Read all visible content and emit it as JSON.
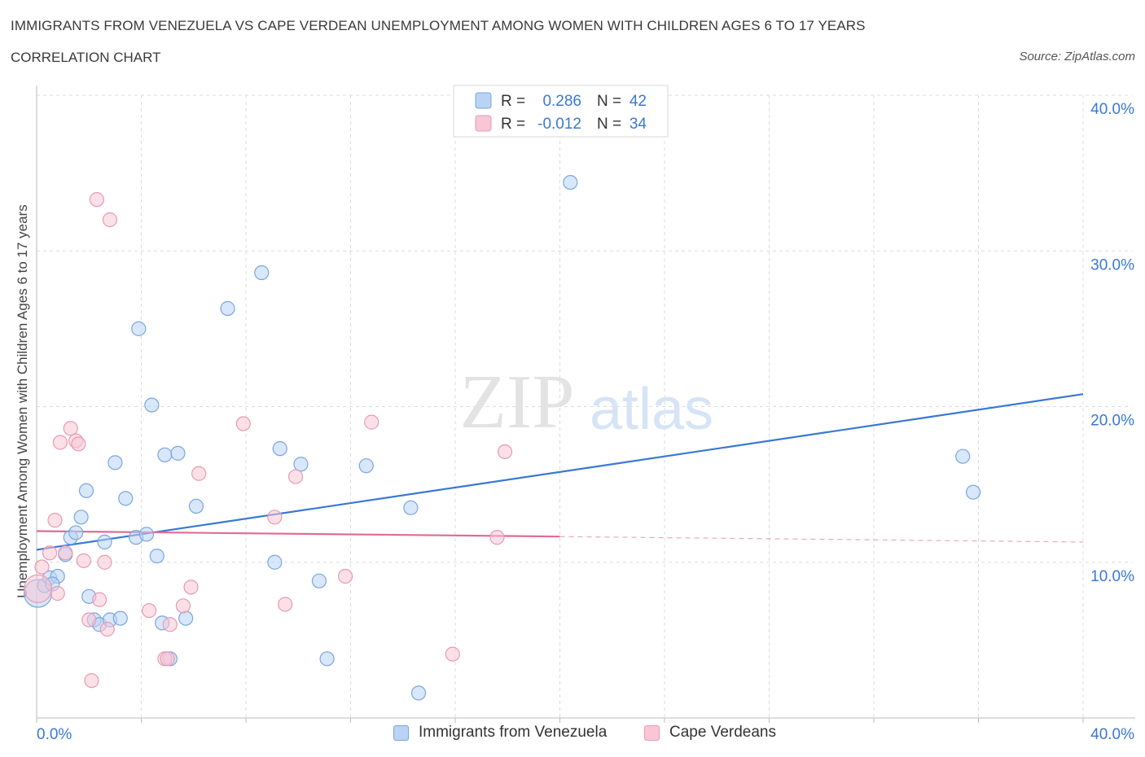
{
  "header": {
    "title": "IMMIGRANTS FROM VENEZUELA VS CAPE VERDEAN UNEMPLOYMENT AMONG WOMEN WITH CHILDREN AGES 6 TO 17 YEARS",
    "subtitle": "CORRELATION CHART",
    "source": "Source: ZipAtlas.com"
  },
  "watermark": {
    "zip": "ZIP",
    "atlas": "atlas"
  },
  "colors": {
    "blue_fill": "#b8d3f5",
    "blue_stroke": "#7aa6df",
    "blue_line": "#3a78d4",
    "pink_fill": "#f8c6d5",
    "pink_stroke": "#e99ab3",
    "pink_line": "#e06c96",
    "value_text": "#3a78d4",
    "grid": "#dcdcdc"
  },
  "legend_top": {
    "rows": [
      {
        "r_label": "R =",
        "r_value": "0.286",
        "n_label": "N =",
        "n_value": "42"
      },
      {
        "r_label": "R =",
        "r_value": "-0.012",
        "n_label": "N =",
        "n_value": "34"
      }
    ]
  },
  "legend_bottom": {
    "items": [
      {
        "label": "Immigrants from Venezuela"
      },
      {
        "label": "Cape Verdeans"
      }
    ]
  },
  "chart_data": {
    "type": "scatter",
    "ylabel": "Unemployment Among Women with Children Ages 6 to 17 years",
    "xlabel": "",
    "xlim": [
      0,
      40
    ],
    "ylim": [
      0,
      40
    ],
    "x_tick_labels": [
      "0.0%",
      "40.0%"
    ],
    "y_ticks": [
      10,
      20,
      30,
      40
    ],
    "y_tick_labels": [
      "10.0%",
      "20.0%",
      "30.0%",
      "40.0%"
    ],
    "grid": true,
    "legend": "top-center",
    "series": [
      {
        "name": "Immigrants from Venezuela",
        "color": "blue",
        "trend": {
          "x": [
            0,
            40
          ],
          "y": [
            10.8,
            20.8
          ],
          "dashed_from": null
        },
        "points": [
          {
            "x": 0.05,
            "y": 8.0,
            "big": true
          },
          {
            "x": 0.3,
            "y": 8.5
          },
          {
            "x": 0.5,
            "y": 9.0
          },
          {
            "x": 0.8,
            "y": 9.1
          },
          {
            "x": 1.1,
            "y": 10.5
          },
          {
            "x": 1.3,
            "y": 11.6
          },
          {
            "x": 1.5,
            "y": 11.9
          },
          {
            "x": 1.7,
            "y": 12.9
          },
          {
            "x": 1.9,
            "y": 14.6
          },
          {
            "x": 2.0,
            "y": 7.8
          },
          {
            "x": 2.2,
            "y": 6.3
          },
          {
            "x": 2.4,
            "y": 6.0
          },
          {
            "x": 2.6,
            "y": 11.3
          },
          {
            "x": 2.8,
            "y": 6.3
          },
          {
            "x": 3.0,
            "y": 16.4
          },
          {
            "x": 3.2,
            "y": 6.4
          },
          {
            "x": 3.4,
            "y": 14.1
          },
          {
            "x": 3.8,
            "y": 11.6
          },
          {
            "x": 3.9,
            "y": 25.0
          },
          {
            "x": 4.2,
            "y": 11.8
          },
          {
            "x": 4.4,
            "y": 20.1
          },
          {
            "x": 4.6,
            "y": 10.4
          },
          {
            "x": 4.8,
            "y": 6.1
          },
          {
            "x": 4.9,
            "y": 16.9
          },
          {
            "x": 5.1,
            "y": 3.8
          },
          {
            "x": 5.4,
            "y": 17.0
          },
          {
            "x": 5.7,
            "y": 6.4
          },
          {
            "x": 6.1,
            "y": 13.6
          },
          {
            "x": 7.3,
            "y": 26.3
          },
          {
            "x": 8.6,
            "y": 28.6
          },
          {
            "x": 9.1,
            "y": 10.0
          },
          {
            "x": 9.3,
            "y": 17.3
          },
          {
            "x": 10.1,
            "y": 16.3
          },
          {
            "x": 10.8,
            "y": 8.8
          },
          {
            "x": 11.1,
            "y": 3.8
          },
          {
            "x": 12.6,
            "y": 16.2
          },
          {
            "x": 14.3,
            "y": 13.5
          },
          {
            "x": 14.6,
            "y": 1.6
          },
          {
            "x": 20.4,
            "y": 34.4
          },
          {
            "x": 35.4,
            "y": 16.8
          },
          {
            "x": 35.8,
            "y": 14.5
          },
          {
            "x": 0.6,
            "y": 8.6
          }
        ]
      },
      {
        "name": "Cape Verdeans",
        "color": "pink",
        "trend": {
          "x": [
            0,
            40
          ],
          "y": [
            12.0,
            11.3
          ],
          "dashed_from": 20.0
        },
        "points": [
          {
            "x": 0.05,
            "y": 8.3,
            "big": true
          },
          {
            "x": 0.2,
            "y": 9.7
          },
          {
            "x": 0.5,
            "y": 10.6
          },
          {
            "x": 0.7,
            "y": 12.7
          },
          {
            "x": 0.8,
            "y": 8.0
          },
          {
            "x": 0.9,
            "y": 17.7
          },
          {
            "x": 1.1,
            "y": 10.6
          },
          {
            "x": 1.3,
            "y": 18.6
          },
          {
            "x": 1.5,
            "y": 17.8
          },
          {
            "x": 1.6,
            "y": 17.6
          },
          {
            "x": 1.8,
            "y": 10.1
          },
          {
            "x": 2.0,
            "y": 6.3
          },
          {
            "x": 2.1,
            "y": 2.4
          },
          {
            "x": 2.3,
            "y": 33.3
          },
          {
            "x": 2.4,
            "y": 7.6
          },
          {
            "x": 2.6,
            "y": 10.0
          },
          {
            "x": 2.7,
            "y": 5.7
          },
          {
            "x": 2.8,
            "y": 32.0
          },
          {
            "x": 4.3,
            "y": 6.9
          },
          {
            "x": 4.9,
            "y": 3.8
          },
          {
            "x": 5.0,
            "y": 3.8
          },
          {
            "x": 5.1,
            "y": 6.0
          },
          {
            "x": 5.6,
            "y": 7.2
          },
          {
            "x": 5.9,
            "y": 8.4
          },
          {
            "x": 6.2,
            "y": 15.7
          },
          {
            "x": 7.9,
            "y": 18.9
          },
          {
            "x": 9.1,
            "y": 12.9
          },
          {
            "x": 9.5,
            "y": 7.3
          },
          {
            "x": 9.9,
            "y": 15.5
          },
          {
            "x": 11.8,
            "y": 9.1
          },
          {
            "x": 12.8,
            "y": 19.0
          },
          {
            "x": 15.9,
            "y": 4.1
          },
          {
            "x": 17.6,
            "y": 11.6
          },
          {
            "x": 17.9,
            "y": 17.1
          }
        ]
      }
    ]
  }
}
